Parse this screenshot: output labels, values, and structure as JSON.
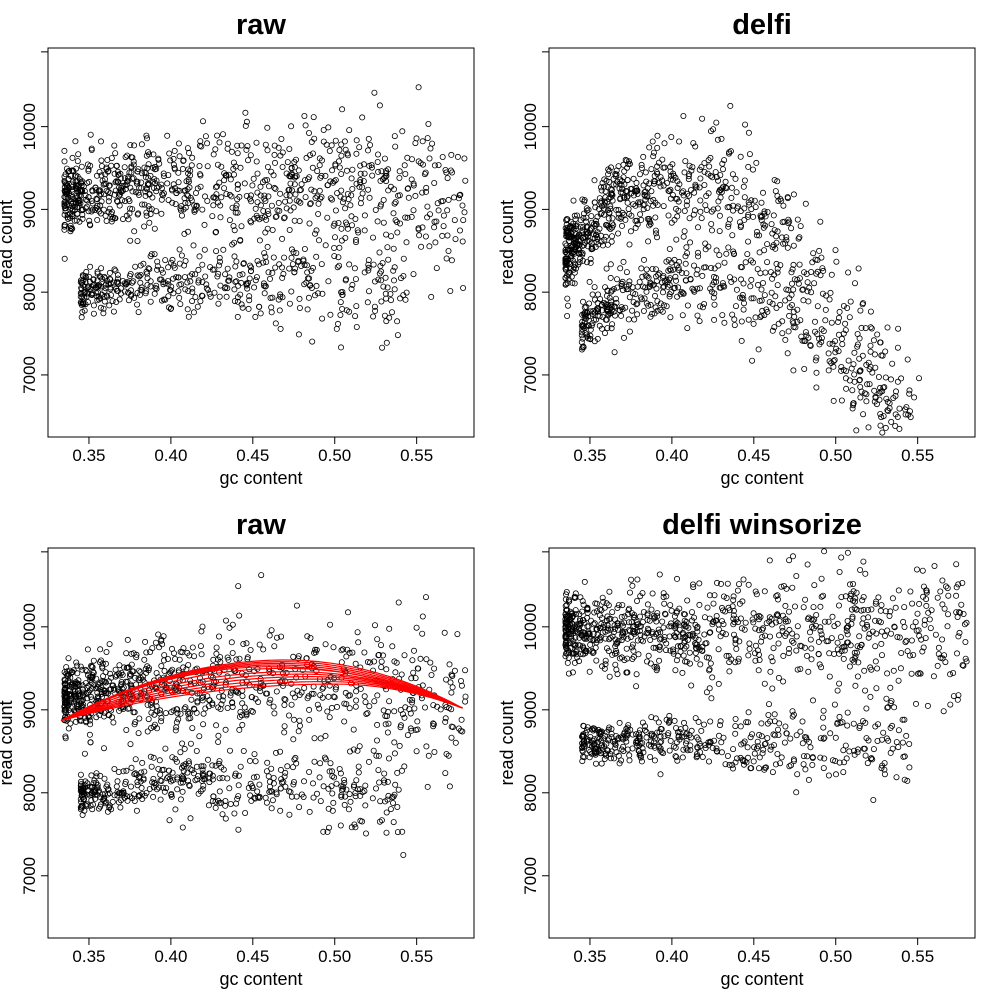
{
  "chart_data": [
    {
      "type": "scatter",
      "title": "raw",
      "xlabel": "gc content",
      "ylabel": "read count",
      "xlim": [
        0.325,
        0.585
      ],
      "ylim": [
        6250,
        10950
      ],
      "xticks": [
        0.35,
        0.4,
        0.45,
        0.5,
        0.55
      ],
      "xtick_labels": [
        "0.35",
        "0.40",
        "0.45",
        "0.50",
        "0.55"
      ],
      "yticks": [
        7000,
        8000,
        9000,
        10000
      ],
      "ytick_labels": [
        "7000",
        "8000",
        "9000",
        "10000"
      ],
      "grid": false,
      "point_clusters": [
        {
          "x_range": [
            0.335,
            0.58
          ],
          "y_start": 9150,
          "y_slope": 3000,
          "y_curve": -14000,
          "x_center": 0.34,
          "spread": 350,
          "n": 900
        },
        {
          "x_range": [
            0.345,
            0.545
          ],
          "y_start": 8000,
          "y_slope": 2500,
          "y_curve": -14000,
          "x_center": 0.345,
          "spread": 220,
          "n": 450
        }
      ],
      "fit_curves": []
    },
    {
      "type": "scatter",
      "title": "delfi",
      "xlabel": "gc content",
      "ylabel": "read count",
      "xlim": [
        0.325,
        0.585
      ],
      "ylim": [
        6250,
        10950
      ],
      "xticks": [
        0.35,
        0.4,
        0.45,
        0.5,
        0.55
      ],
      "xtick_labels": [
        "0.35",
        "0.40",
        "0.45",
        "0.50",
        "0.55"
      ],
      "yticks": [
        7000,
        8000,
        9000,
        10000
      ],
      "ytick_labels": [
        "7000",
        "8000",
        "9000",
        "10000"
      ],
      "grid": false,
      "point_clusters": [
        {
          "x_range": [
            0.335,
            0.58
          ],
          "y_start": 8450,
          "y_slope": 24000,
          "y_curve": -170000,
          "x_center": 0.335,
          "spread": 380,
          "n": 900
        },
        {
          "x_range": [
            0.345,
            0.545
          ],
          "y_start": 7600,
          "y_slope": 16000,
          "y_curve": -120000,
          "x_center": 0.345,
          "spread": 260,
          "n": 450
        }
      ],
      "fit_curves": []
    },
    {
      "type": "scatter",
      "title": "raw",
      "xlabel": "gc content",
      "ylabel": "read count",
      "xlim": [
        0.325,
        0.585
      ],
      "ylim": [
        6250,
        10950
      ],
      "xticks": [
        0.35,
        0.4,
        0.45,
        0.5,
        0.55
      ],
      "xtick_labels": [
        "0.35",
        "0.40",
        "0.45",
        "0.50",
        "0.55"
      ],
      "yticks": [
        7000,
        8000,
        9000,
        10000
      ],
      "ytick_labels": [
        "7000",
        "8000",
        "9000",
        "10000"
      ],
      "grid": false,
      "point_clusters": [
        {
          "x_range": [
            0.335,
            0.58
          ],
          "y_start": 9150,
          "y_slope": 3000,
          "y_curve": -14000,
          "x_center": 0.34,
          "spread": 350,
          "n": 900
        },
        {
          "x_range": [
            0.345,
            0.545
          ],
          "y_start": 8000,
          "y_slope": 2500,
          "y_curve": -14000,
          "x_center": 0.345,
          "spread": 220,
          "n": 450
        }
      ],
      "fit_curves": {
        "color": "#ff0000",
        "x_range": [
          0.333,
          0.578
        ],
        "peaks": [
          {
            "x_peak": 0.47,
            "y_peak": 9600
          },
          {
            "x_peak": 0.468,
            "y_peak": 9580
          },
          {
            "x_peak": 0.466,
            "y_peak": 9560
          },
          {
            "x_peak": 0.464,
            "y_peak": 9540
          },
          {
            "x_peak": 0.462,
            "y_peak": 9520
          },
          {
            "x_peak": 0.47,
            "y_peak": 9500
          },
          {
            "x_peak": 0.475,
            "y_peak": 9460
          },
          {
            "x_peak": 0.48,
            "y_peak": 9430
          },
          {
            "x_peak": 0.485,
            "y_peak": 9400
          },
          {
            "x_peak": 0.49,
            "y_peak": 9370
          },
          {
            "x_peak": 0.495,
            "y_peak": 9340
          },
          {
            "x_peak": 0.5,
            "y_peak": 9310
          }
        ],
        "y_at_left": 8870,
        "y_at_right": 9020
      }
    },
    {
      "type": "scatter",
      "title": "delfi winsorize",
      "xlabel": "gc content",
      "ylabel": "read count",
      "xlim": [
        0.325,
        0.585
      ],
      "ylim": [
        6250,
        10950
      ],
      "xticks": [
        0.35,
        0.4,
        0.45,
        0.5,
        0.55
      ],
      "xtick_labels": [
        "0.35",
        "0.40",
        "0.45",
        "0.50",
        "0.55"
      ],
      "yticks": [
        7000,
        8000,
        9000,
        10000
      ],
      "ytick_labels": [
        "7000",
        "8000",
        "9000",
        "10000"
      ],
      "grid": false,
      "point_clusters": [
        {
          "x_range": [
            0.335,
            0.58
          ],
          "y_start": 9950,
          "y_slope": 0,
          "y_curve": 0,
          "x_center": 0.34,
          "spread": 330,
          "n": 900
        },
        {
          "x_range": [
            0.345,
            0.545
          ],
          "y_start": 8600,
          "y_slope": 0,
          "y_curve": 0,
          "x_center": 0.345,
          "spread": 180,
          "n": 450
        }
      ],
      "fit_curves": []
    }
  ]
}
